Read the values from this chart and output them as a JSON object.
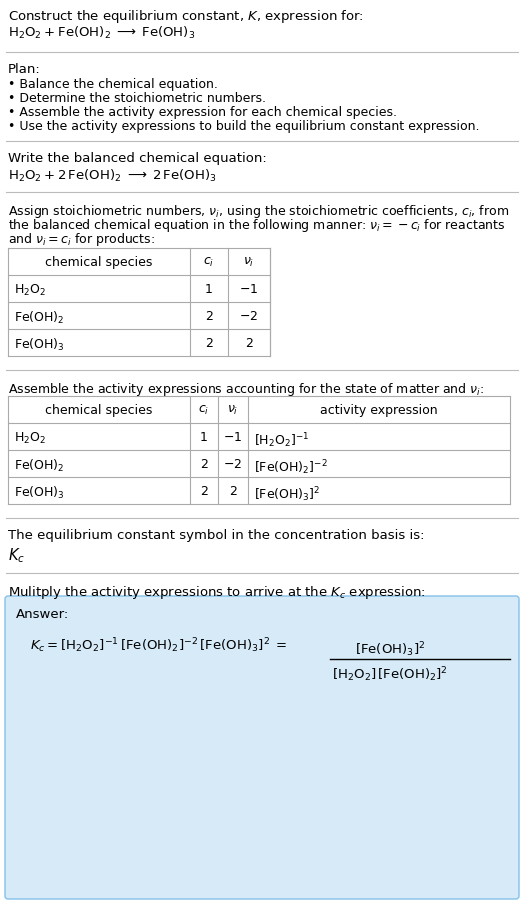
{
  "bg_color": "#ffffff",
  "text_color": "#000000",
  "line_color": "#bbbbbb",
  "table_line_color": "#aaaaaa",
  "title_line1": "Construct the equilibrium constant, $K$, expression for:",
  "title_line2_parts": [
    "$\\mathrm{H_2O_2 + Fe(OH)_2}$",
    " ⟶ ",
    "$\\mathrm{Fe(OH)_3}$"
  ],
  "plan_header": "Plan:",
  "plan_items": [
    "• Balance the chemical equation.",
    "• Determine the stoichiometric numbers.",
    "• Assemble the activity expression for each chemical species.",
    "• Use the activity expressions to build the equilibrium constant expression."
  ],
  "balanced_header": "Write the balanced chemical equation:",
  "balanced_eq": "$\\mathrm{H_2O_2 + 2\\,Fe(OH)_2 \\;\\longrightarrow\\; 2\\,Fe(OH)_3}$",
  "stoich_para": [
    "Assign stoichiometric numbers, $\\nu_i$, using the stoichiometric coefficients, $c_i$, from",
    "the balanced chemical equation in the following manner: $\\nu_i = -c_i$ for reactants",
    "and $\\nu_i = c_i$ for products:"
  ],
  "table1_header": [
    "chemical species",
    "$c_i$",
    "$\\nu_i$"
  ],
  "table1_rows": [
    [
      "$\\mathrm{H_2O_2}$",
      "1",
      "$-1$"
    ],
    [
      "$\\mathrm{Fe(OH)_2}$",
      "2",
      "$-2$"
    ],
    [
      "$\\mathrm{Fe(OH)_3}$",
      "2",
      "2"
    ]
  ],
  "activity_header": "Assemble the activity expressions accounting for the state of matter and $\\nu_i$:",
  "table2_header": [
    "chemical species",
    "$c_i$",
    "$\\nu_i$",
    "activity expression"
  ],
  "table2_rows": [
    [
      "$\\mathrm{H_2O_2}$",
      "1",
      "$-1$",
      "$[\\mathrm{H_2O_2}]^{-1}$"
    ],
    [
      "$\\mathrm{Fe(OH)_2}$",
      "2",
      "$-2$",
      "$[\\mathrm{Fe(OH)_2}]^{-2}$"
    ],
    [
      "$\\mathrm{Fe(OH)_3}$",
      "2",
      "2",
      "$[\\mathrm{Fe(OH)_3}]^{2}$"
    ]
  ],
  "kc_header": "The equilibrium constant symbol in the concentration basis is:",
  "kc_symbol": "$K_c$",
  "multiply_header": "Mulitply the activity expressions to arrive at the $K_c$ expression:",
  "answer_label": "Answer:",
  "answer_lhs": "$K_c = [\\mathrm{H_2O_2}]^{-1}\\,[\\mathrm{Fe(OH)_2}]^{-2}\\,[\\mathrm{Fe(OH)_3}]^{2}\\; = $",
  "answer_num": "$[\\mathrm{Fe(OH)_3}]^{2}$",
  "answer_den": "$[\\mathrm{H_2O_2}]\\,[\\mathrm{Fe(OH)_2}]^{2}$",
  "answer_box_color": "#d6eaf8",
  "answer_box_border": "#85c1e9",
  "fs_main": 9.5,
  "fs_small": 9.0,
  "lmargin": 8,
  "fig_w": 524,
  "fig_h": 903
}
